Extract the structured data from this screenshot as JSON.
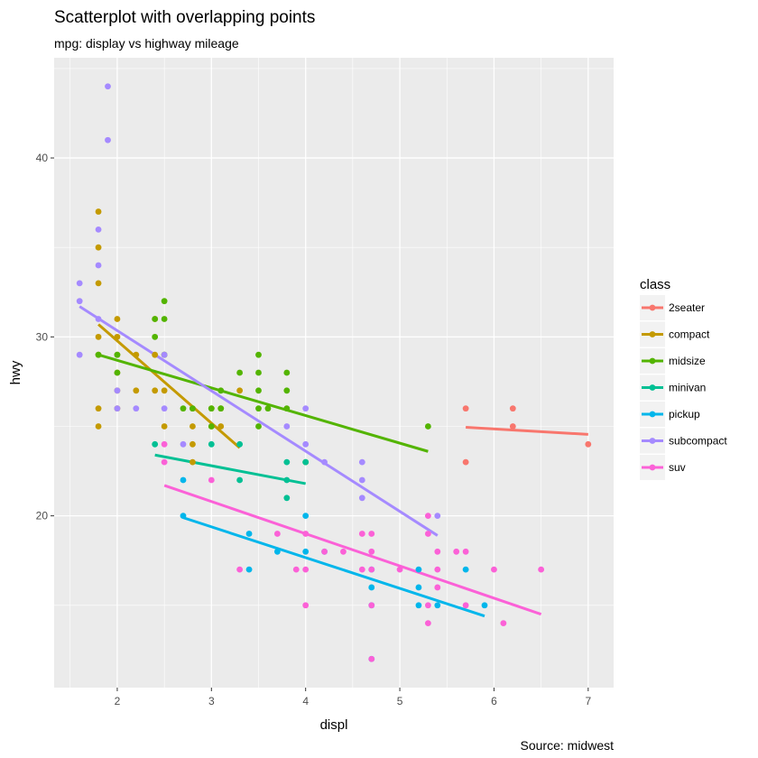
{
  "chart_data": {
    "type": "scatter",
    "title": "Scatterplot with overlapping points",
    "subtitle": "mpg: display vs highway mileage",
    "caption": "Source: midwest",
    "xlabel": "displ",
    "ylabel": "hwy",
    "xlim": [
      1.33,
      7.27
    ],
    "ylim": [
      10.4,
      45.6
    ],
    "xticks": [
      2,
      3,
      4,
      5,
      6,
      7
    ],
    "yticks": [
      20,
      30,
      40
    ],
    "xminor": [
      1.5,
      2.5,
      3.5,
      4.5,
      5.5,
      6.5
    ],
    "yminor": [
      15,
      25,
      35,
      45
    ],
    "grid": true,
    "legend": {
      "title": "class",
      "position": "right"
    },
    "series": [
      {
        "name": "2seater",
        "color": "#F8766D",
        "points": [
          [
            5.7,
            26
          ],
          [
            5.7,
            23
          ],
          [
            6.2,
            26
          ],
          [
            6.2,
            25
          ],
          [
            7.0,
            24
          ]
        ],
        "fit": [
          [
            5.7,
            24.95
          ],
          [
            7.0,
            24.55
          ]
        ]
      },
      {
        "name": "compact",
        "color": "#C49A00",
        "points": [
          [
            1.8,
            37
          ],
          [
            1.8,
            35
          ],
          [
            1.8,
            33
          ],
          [
            1.8,
            30
          ],
          [
            1.8,
            29
          ],
          [
            1.8,
            26
          ],
          [
            1.8,
            25
          ],
          [
            2.0,
            31
          ],
          [
            2.0,
            30
          ],
          [
            2.0,
            29
          ],
          [
            2.0,
            28
          ],
          [
            2.0,
            27
          ],
          [
            2.0,
            26
          ],
          [
            2.2,
            29
          ],
          [
            2.2,
            27
          ],
          [
            2.4,
            31
          ],
          [
            2.4,
            29
          ],
          [
            2.4,
            27
          ],
          [
            2.5,
            29
          ],
          [
            2.5,
            27
          ],
          [
            2.5,
            25
          ],
          [
            2.8,
            26
          ],
          [
            2.8,
            25
          ],
          [
            2.8,
            24
          ],
          [
            2.8,
            23
          ],
          [
            3.0,
            26
          ],
          [
            3.0,
            25
          ],
          [
            3.1,
            26
          ],
          [
            3.1,
            25
          ],
          [
            3.3,
            27
          ]
        ],
        "fit": [
          [
            1.8,
            30.7
          ],
          [
            3.3,
            23.8
          ]
        ]
      },
      {
        "name": "midsize",
        "color": "#53B400",
        "points": [
          [
            1.8,
            29
          ],
          [
            2.0,
            29
          ],
          [
            2.0,
            28
          ],
          [
            2.4,
            30
          ],
          [
            2.4,
            31
          ],
          [
            2.5,
            32
          ],
          [
            2.5,
            31
          ],
          [
            2.5,
            29
          ],
          [
            2.7,
            26
          ],
          [
            2.8,
            26
          ],
          [
            3.0,
            26
          ],
          [
            3.0,
            25
          ],
          [
            3.1,
            27
          ],
          [
            3.1,
            26
          ],
          [
            3.3,
            28
          ],
          [
            3.5,
            29
          ],
          [
            3.5,
            28
          ],
          [
            3.5,
            27
          ],
          [
            3.5,
            26
          ],
          [
            3.5,
            25
          ],
          [
            3.6,
            26
          ],
          [
            3.8,
            28
          ],
          [
            3.8,
            27
          ],
          [
            3.8,
            26
          ],
          [
            4.0,
            23
          ],
          [
            5.3,
            25
          ]
        ],
        "fit": [
          [
            1.8,
            29.0
          ],
          [
            5.3,
            23.6
          ]
        ]
      },
      {
        "name": "minivan",
        "color": "#00C094",
        "points": [
          [
            2.4,
            24
          ],
          [
            3.0,
            24
          ],
          [
            3.3,
            24
          ],
          [
            3.3,
            22
          ],
          [
            3.8,
            23
          ],
          [
            3.8,
            22
          ],
          [
            3.8,
            21
          ],
          [
            4.0,
            23
          ]
        ],
        "fit": [
          [
            2.4,
            23.4
          ],
          [
            4.0,
            21.8
          ]
        ]
      },
      {
        "name": "pickup",
        "color": "#00B6EB",
        "points": [
          [
            2.7,
            22
          ],
          [
            2.7,
            20
          ],
          [
            3.4,
            19
          ],
          [
            3.4,
            17
          ],
          [
            3.7,
            18
          ],
          [
            4.0,
            20
          ],
          [
            4.0,
            18
          ],
          [
            4.2,
            18
          ],
          [
            4.7,
            17
          ],
          [
            4.7,
            16
          ],
          [
            4.7,
            15
          ],
          [
            4.7,
            12
          ],
          [
            5.2,
            17
          ],
          [
            5.2,
            16
          ],
          [
            5.2,
            15
          ],
          [
            5.4,
            15
          ],
          [
            5.7,
            17
          ],
          [
            5.9,
            15
          ]
        ],
        "fit": [
          [
            2.7,
            19.9
          ],
          [
            5.9,
            14.4
          ]
        ]
      },
      {
        "name": "subcompact",
        "color": "#A58AFF",
        "points": [
          [
            1.6,
            33
          ],
          [
            1.6,
            32
          ],
          [
            1.6,
            29
          ],
          [
            1.8,
            36
          ],
          [
            1.8,
            34
          ],
          [
            1.8,
            31
          ],
          [
            1.9,
            44
          ],
          [
            1.9,
            41
          ],
          [
            2.0,
            27
          ],
          [
            2.0,
            26
          ],
          [
            2.2,
            26
          ],
          [
            2.5,
            26
          ],
          [
            2.5,
            29
          ],
          [
            2.7,
            24
          ],
          [
            3.8,
            25
          ],
          [
            4.0,
            26
          ],
          [
            4.0,
            24
          ],
          [
            4.2,
            23
          ],
          [
            4.6,
            23
          ],
          [
            4.6,
            22
          ],
          [
            4.6,
            21
          ],
          [
            5.4,
            20
          ]
        ],
        "fit": [
          [
            1.6,
            31.7
          ],
          [
            5.4,
            18.9
          ]
        ]
      },
      {
        "name": "suv",
        "color": "#FB61D7",
        "points": [
          [
            2.5,
            24
          ],
          [
            2.5,
            23
          ],
          [
            3.0,
            22
          ],
          [
            3.3,
            17
          ],
          [
            3.7,
            19
          ],
          [
            3.9,
            17
          ],
          [
            4.0,
            19
          ],
          [
            4.0,
            17
          ],
          [
            4.0,
            15
          ],
          [
            4.2,
            18
          ],
          [
            4.4,
            18
          ],
          [
            4.6,
            19
          ],
          [
            4.6,
            17
          ],
          [
            4.7,
            19
          ],
          [
            4.7,
            18
          ],
          [
            4.7,
            17
          ],
          [
            4.7,
            15
          ],
          [
            4.7,
            12
          ],
          [
            5.0,
            17
          ],
          [
            5.3,
            20
          ],
          [
            5.3,
            19
          ],
          [
            5.3,
            15
          ],
          [
            5.3,
            14
          ],
          [
            5.4,
            18
          ],
          [
            5.4,
            17
          ],
          [
            5.4,
            16
          ],
          [
            5.6,
            18
          ],
          [
            5.7,
            18
          ],
          [
            5.7,
            15
          ],
          [
            6.0,
            17
          ],
          [
            6.1,
            14
          ],
          [
            6.5,
            17
          ]
        ],
        "fit": [
          [
            2.5,
            21.7
          ],
          [
            6.5,
            14.5
          ]
        ]
      }
    ]
  }
}
